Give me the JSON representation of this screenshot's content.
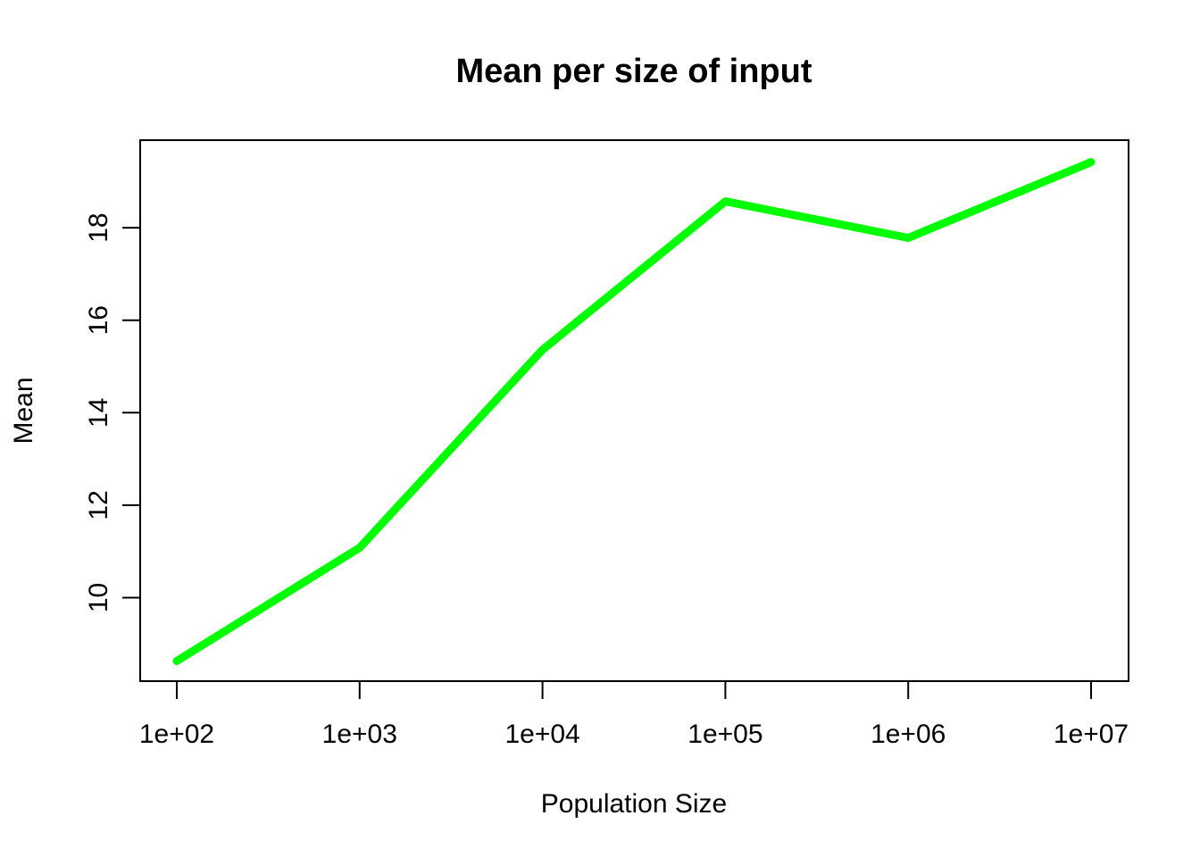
{
  "chart_data": {
    "type": "line",
    "title": "Mean per size of input",
    "xlabel": "Population Size",
    "ylabel": "Mean",
    "x": [
      100,
      1000,
      10000,
      100000,
      1000000,
      10000000
    ],
    "x_tick_labels": [
      "1e+02",
      "1e+03",
      "1e+04",
      "1e+05",
      "1e+06",
      "1e+07"
    ],
    "y_ticks": [
      10,
      12,
      14,
      16,
      18
    ],
    "y_tick_labels": [
      "10",
      "12",
      "14",
      "16",
      "18"
    ],
    "x_scale": "log",
    "xlim": [
      100,
      10000000
    ],
    "ylim": [
      8.6,
      19.45
    ],
    "grid": false,
    "series": [
      {
        "values": [
          8.63,
          11.08,
          15.36,
          18.57,
          17.78,
          19.42
        ],
        "color": "#00ff00"
      }
    ]
  }
}
